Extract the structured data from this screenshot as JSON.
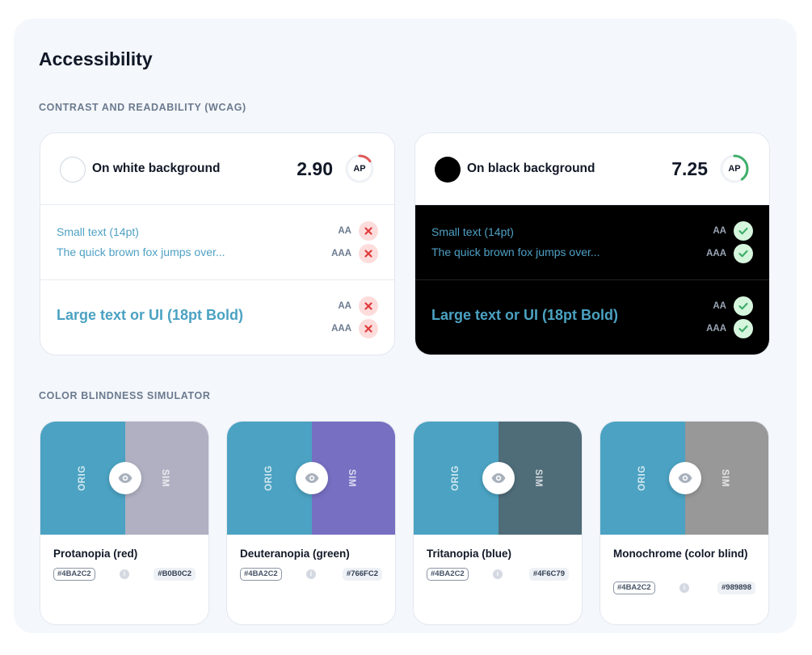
{
  "page": {
    "title": "Accessibility"
  },
  "sections": {
    "contrast": "CONTRAST AND READABILITY (WCAG)",
    "blindness": "COLOR BLINDNESS SIMULATOR"
  },
  "contrast_cards": [
    {
      "label": "On white background",
      "ratio": "2.90",
      "rating": "AP",
      "ring_color": "#e05a5a",
      "ring_fraction": 0.15,
      "small_text": "Small text (14pt)",
      "sample_text": "The quick brown fox jumps over...",
      "large_text": "Large text or UI (18pt Bold)",
      "levels": {
        "aa": "AA",
        "aaa": "AAA"
      },
      "results": {
        "small_aa": "fail",
        "small_aaa": "fail",
        "large_aa": "fail",
        "large_aaa": "fail"
      }
    },
    {
      "label": "On black background",
      "ratio": "7.25",
      "rating": "AP",
      "ring_color": "#3fae6a",
      "ring_fraction": 0.4,
      "small_text": "Small text (14pt)",
      "sample_text": "The quick brown fox jumps over...",
      "large_text": "Large text or UI (18pt Bold)",
      "levels": {
        "aa": "AA",
        "aaa": "AAA"
      },
      "results": {
        "small_aa": "pass",
        "small_aaa": "pass",
        "large_aa": "pass",
        "large_aaa": "pass"
      }
    }
  ],
  "blindness_cards": [
    {
      "name": "Protanopia (red)",
      "orig_label": "ORIG",
      "sim_label": "SIM",
      "orig_hex": "#4BA2C2",
      "sim_hex": "#B0B0C2",
      "info": "i"
    },
    {
      "name": "Deuteranopia (green)",
      "orig_label": "ORIG",
      "sim_label": "SIM",
      "orig_hex": "#4BA2C2",
      "sim_hex": "#766FC2",
      "info": "i"
    },
    {
      "name": "Tritanopia (blue)",
      "orig_label": "ORIG",
      "sim_label": "SIM",
      "orig_hex": "#4BA2C2",
      "sim_hex": "#4F6C79",
      "info": "i"
    },
    {
      "name": "Monochrome (color blind)",
      "orig_label": "ORIG",
      "sim_label": "SIM",
      "orig_hex": "#4BA2C2",
      "sim_hex": "#989898",
      "info": "i"
    }
  ],
  "colors": {
    "text_accent": "#4BA2C2",
    "fail": "#e03b3b",
    "pass": "#3fae6a"
  }
}
